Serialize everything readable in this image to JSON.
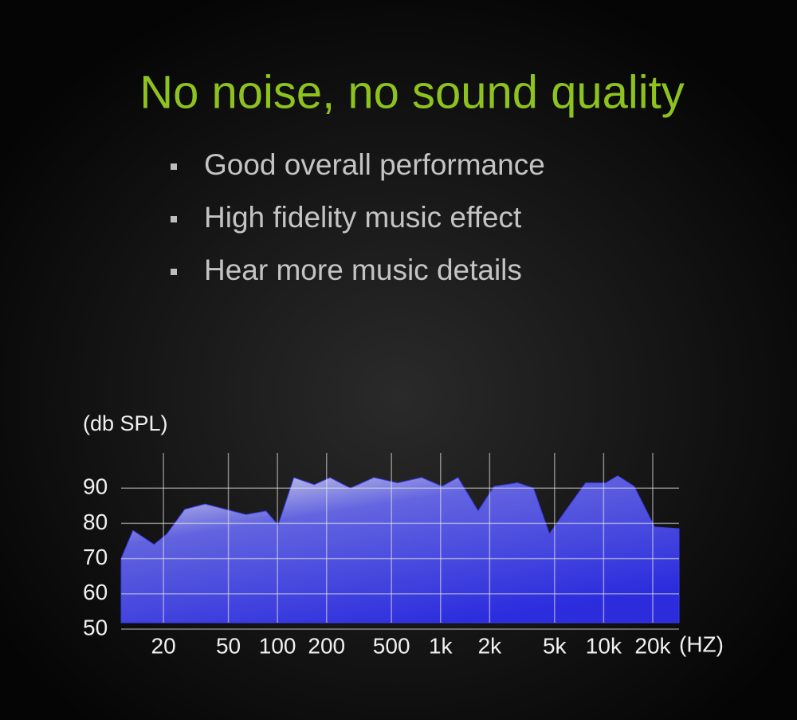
{
  "title": "No noise, no sound quality",
  "bullets": [
    "Good overall performance",
    "High fidelity music effect",
    "Hear more music details"
  ],
  "chart_data": {
    "type": "area",
    "y_label": "(db SPL)",
    "x_label": "(HZ)",
    "x": [
      11,
      13,
      17.5,
      21,
      27,
      36,
      48,
      64,
      85,
      101,
      126,
      168,
      210,
      280,
      390,
      545,
      765,
      1020,
      1280,
      1700,
      2130,
      2960,
      3710,
      4650,
      5830,
      7750,
      10300,
      12200,
      15400,
      20500,
      29000
    ],
    "values": [
      70,
      78,
      74,
      77,
      84,
      85.5,
      84,
      82.5,
      83.5,
      79.5,
      93,
      91,
      93,
      90,
      93,
      91.5,
      93,
      90.5,
      93,
      83.5,
      90.5,
      91.5,
      90,
      77,
      83.5,
      91.5,
      91.5,
      93.5,
      90.5,
      79,
      78.5
    ],
    "color": "#3b3cf0",
    "log_x": true,
    "xlim": [
      11,
      29000
    ],
    "ylim": [
      50,
      100
    ],
    "xticks": [
      {
        "value": 20,
        "label": "20"
      },
      {
        "value": 50,
        "label": "50"
      },
      {
        "value": 100,
        "label": "100"
      },
      {
        "value": 200,
        "label": "200"
      },
      {
        "value": 500,
        "label": "500"
      },
      {
        "value": 1000,
        "label": "1k"
      },
      {
        "value": 2000,
        "label": "2k"
      },
      {
        "value": 5000,
        "label": "5k"
      },
      {
        "value": 10000,
        "label": "10k"
      },
      {
        "value": 20000,
        "label": "20k"
      }
    ],
    "yticks": [
      50,
      60,
      70,
      80,
      90
    ],
    "grid": true
  }
}
